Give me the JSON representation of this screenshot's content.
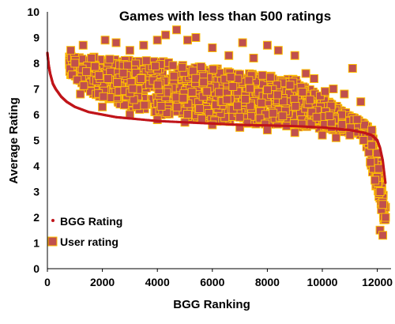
{
  "chart_data": {
    "type": "scatter",
    "title": "Games with less than 500 ratings",
    "xlabel": "BGG Ranking",
    "ylabel": "Average Rating",
    "xlim": [
      0,
      12500
    ],
    "ylim": [
      0,
      10
    ],
    "x_ticks": [
      "0",
      "2000",
      "4000",
      "6000",
      "8000",
      "10000",
      "12000"
    ],
    "y_ticks": [
      "0",
      "1",
      "2",
      "3",
      "4",
      "5",
      "6",
      "7",
      "8",
      "9",
      "10"
    ],
    "grid": false,
    "legend_position": "bottom-left",
    "colors": {
      "bgg_rating": "#c0151a",
      "user_marker_fill": "#c0504d",
      "user_marker_edge": "#ffc000"
    },
    "series": [
      {
        "name": "BGG Rating",
        "marker": "small-dot",
        "x": [
          0,
          50,
          100,
          200,
          300,
          500,
          700,
          1000,
          1500,
          2000,
          2500,
          3000,
          4000,
          5000,
          6000,
          7000,
          8000,
          9000,
          10000,
          10500,
          11000,
          11500,
          11800,
          12000,
          12100,
          12200,
          12300
        ],
        "y": [
          8.4,
          7.9,
          7.6,
          7.2,
          7.0,
          6.7,
          6.5,
          6.3,
          6.1,
          6.0,
          5.9,
          5.85,
          5.75,
          5.7,
          5.65,
          5.6,
          5.58,
          5.55,
          5.5,
          5.45,
          5.4,
          5.3,
          5.2,
          5.0,
          4.7,
          4.2,
          3.3
        ]
      },
      {
        "name": "User rating",
        "marker": "square",
        "x": [
          850,
          1000,
          1300,
          1600,
          2100,
          2500,
          3000,
          3500,
          4000,
          4300,
          4700,
          5100,
          5400,
          6000,
          6600,
          7100,
          7500,
          8000,
          8400,
          9000,
          9400,
          9700,
          10100,
          10400,
          10800,
          11100,
          11400,
          11800,
          12000,
          12100,
          12150,
          12200,
          1200,
          2000,
          3000,
          4000,
          5000,
          6000,
          7000,
          8000,
          9000,
          10000,
          10500,
          11000,
          11500,
          11800,
          12100,
          12200,
          12300,
          2200,
          3600,
          4600,
          5800,
          7200,
          9800,
          12050
        ],
        "y": [
          8.5,
          8.0,
          8.7,
          8.2,
          8.9,
          8.8,
          8.5,
          8.7,
          8.9,
          9.1,
          9.3,
          8.9,
          9.0,
          8.6,
          8.3,
          8.8,
          8.2,
          8.7,
          8.5,
          8.3,
          7.6,
          7.4,
          6.9,
          7.0,
          6.8,
          7.8,
          6.5,
          5.4,
          4.5,
          1.5,
          2.3,
          1.3,
          6.8,
          6.3,
          6.0,
          5.8,
          5.7,
          5.6,
          5.5,
          5.4,
          5.3,
          5.2,
          5.1,
          5.2,
          5.0,
          4.8,
          3.0,
          2.5,
          2.0,
          7.4,
          8.1,
          7.5,
          6.9,
          6.6,
          5.9,
          3.9
        ]
      }
    ]
  }
}
